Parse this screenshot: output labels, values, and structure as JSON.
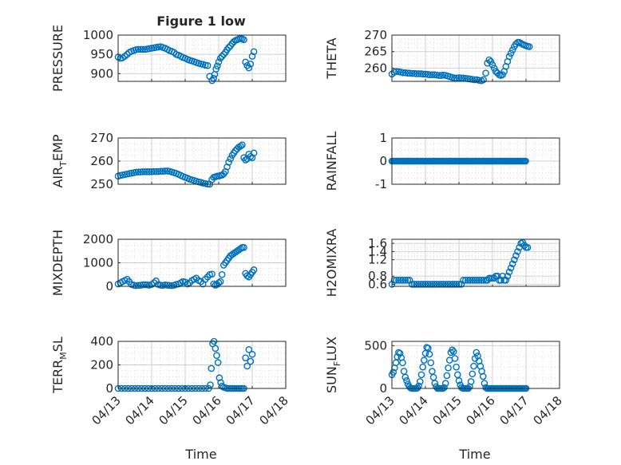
{
  "figure": {
    "title": "Figure 1 low",
    "xlabel": "Time",
    "x_ticks": [
      "04/13",
      "04/14",
      "04/15",
      "04/16",
      "04/17",
      "04/18"
    ],
    "x_range": [
      13,
      18
    ],
    "marker": "circle",
    "marker_color": "#0072bd",
    "grid": "major and minor dotted"
  },
  "chart_data": [
    {
      "id": "pressure",
      "type": "scatter",
      "ylabel": "PRESSURE",
      "ylim": [
        880,
        1000
      ],
      "yticks": [
        900,
        950,
        1000
      ],
      "x": [
        13.0,
        13.07,
        13.13,
        13.2,
        13.27,
        13.33,
        13.4,
        13.47,
        13.53,
        13.6,
        13.67,
        13.73,
        13.8,
        13.87,
        13.93,
        14.0,
        14.07,
        14.13,
        14.2,
        14.27,
        14.33,
        14.4,
        14.47,
        14.53,
        14.6,
        14.67,
        14.73,
        14.8,
        14.87,
        14.93,
        15.0,
        15.07,
        15.13,
        15.2,
        15.27,
        15.33,
        15.4,
        15.47,
        15.53,
        15.6,
        15.67,
        15.73,
        15.8,
        15.85,
        15.88,
        15.92,
        15.96,
        16.0,
        16.05,
        16.1,
        16.15,
        16.2,
        16.25,
        16.3,
        16.35,
        16.4,
        16.45,
        16.5,
        16.55,
        16.6,
        16.65,
        16.7,
        16.75,
        16.8,
        16.85,
        16.9,
        16.95,
        17.0,
        17.05
      ],
      "y": [
        943,
        940,
        941,
        945,
        950,
        955,
        958,
        960,
        962,
        963,
        963,
        963,
        963,
        964,
        965,
        966,
        967,
        968,
        969,
        970,
        968,
        966,
        963,
        960,
        958,
        955,
        950,
        948,
        945,
        942,
        940,
        937,
        935,
        933,
        931,
        929,
        927,
        925,
        924,
        922,
        921,
        893,
        882,
        888,
        898,
        912,
        920,
        930,
        940,
        945,
        950,
        955,
        962,
        968,
        972,
        978,
        983,
        986,
        988,
        990,
        991,
        990,
        988,
        930,
        921,
        915,
        925,
        945,
        957
      ]
    },
    {
      "id": "theta",
      "type": "scatter",
      "ylabel": "THETA",
      "ylim": [
        256,
        270
      ],
      "yticks": [
        260,
        265,
        270
      ],
      "x": [
        13.0,
        13.07,
        13.13,
        13.2,
        13.27,
        13.33,
        13.4,
        13.47,
        13.53,
        13.6,
        13.67,
        13.73,
        13.8,
        13.87,
        13.93,
        14.0,
        14.07,
        14.13,
        14.2,
        14.27,
        14.33,
        14.4,
        14.47,
        14.53,
        14.6,
        14.67,
        14.73,
        14.8,
        14.87,
        14.93,
        15.0,
        15.07,
        15.13,
        15.2,
        15.27,
        15.33,
        15.4,
        15.47,
        15.53,
        15.6,
        15.67,
        15.73,
        15.8,
        15.85,
        15.9,
        15.95,
        16.0,
        16.05,
        16.1,
        16.15,
        16.2,
        16.25,
        16.3,
        16.35,
        16.4,
        16.45,
        16.5,
        16.55,
        16.6,
        16.65,
        16.7,
        16.75,
        16.8,
        16.85,
        16.9,
        16.95,
        17.0,
        17.05,
        17.1
      ],
      "y": [
        258.2,
        258.8,
        259.0,
        258.9,
        258.8,
        258.6,
        258.6,
        258.5,
        258.5,
        258.4,
        258.4,
        258.3,
        258.3,
        258.3,
        258.2,
        258.2,
        258.1,
        258.0,
        258.0,
        258.0,
        257.9,
        257.8,
        257.8,
        257.9,
        257.8,
        257.6,
        257.4,
        257.2,
        257.0,
        257.0,
        257.1,
        257.0,
        257.0,
        256.9,
        256.8,
        256.7,
        256.6,
        256.5,
        256.5,
        256.3,
        256.2,
        256.5,
        258.5,
        261.5,
        262.5,
        262.0,
        261.0,
        260.0,
        259.0,
        258.5,
        258.0,
        257.8,
        258.0,
        259.0,
        260.5,
        262.0,
        263.5,
        264.5,
        265.5,
        266.5,
        267.3,
        267.8,
        267.8,
        267.5,
        267.2,
        267.0,
        266.8,
        266.6,
        266.5
      ]
    },
    {
      "id": "air_temp",
      "type": "scatter",
      "ylabel": "AIR_TEMP",
      "ylabel_display": [
        "AIR",
        "T",
        "EMP"
      ],
      "ylim": [
        250,
        270
      ],
      "yticks": [
        250,
        260,
        270
      ],
      "x": [
        13.0,
        13.07,
        13.13,
        13.2,
        13.27,
        13.33,
        13.4,
        13.47,
        13.53,
        13.6,
        13.67,
        13.73,
        13.8,
        13.87,
        13.93,
        14.0,
        14.07,
        14.13,
        14.2,
        14.27,
        14.33,
        14.4,
        14.47,
        14.53,
        14.6,
        14.67,
        14.73,
        14.8,
        14.87,
        14.93,
        15.0,
        15.07,
        15.13,
        15.2,
        15.27,
        15.33,
        15.4,
        15.47,
        15.53,
        15.6,
        15.67,
        15.73,
        15.8,
        15.85,
        15.9,
        15.95,
        16.0,
        16.05,
        16.1,
        16.15,
        16.2,
        16.25,
        16.3,
        16.35,
        16.4,
        16.45,
        16.5,
        16.55,
        16.6,
        16.65,
        16.7,
        16.75,
        16.8,
        16.85,
        16.9,
        16.95,
        17.0,
        17.05
      ],
      "y": [
        253.5,
        253.8,
        254.0,
        254.2,
        254.4,
        254.6,
        254.8,
        255.0,
        255.2,
        255.3,
        255.3,
        255.4,
        255.4,
        255.4,
        255.4,
        255.4,
        255.5,
        255.5,
        255.5,
        255.6,
        255.6,
        255.7,
        255.7,
        255.6,
        255.3,
        255.0,
        254.7,
        254.3,
        253.8,
        253.4,
        253.0,
        252.6,
        252.2,
        251.9,
        251.6,
        251.3,
        251.0,
        250.8,
        250.5,
        250.3,
        250.1,
        250.0,
        252.0,
        253.0,
        253.2,
        253.5,
        253.5,
        253.8,
        254.0,
        254.5,
        255.5,
        257.5,
        259.5,
        261.0,
        262.5,
        263.5,
        264.5,
        265.3,
        266.0,
        266.5,
        267.0,
        261.5,
        260.5,
        261.0,
        263.0,
        262.0,
        261.5,
        263.5
      ]
    },
    {
      "id": "rainfall",
      "type": "scatter",
      "ylabel": "RAINFALL",
      "ylim": [
        -1,
        1
      ],
      "yticks": [
        -1,
        0,
        1
      ],
      "x_start": 13.0,
      "x_end": 17.0,
      "constant_value": 0
    },
    {
      "id": "mixdepth",
      "type": "scatter",
      "ylabel": "MIXDEPTH",
      "ylim": [
        0,
        2000
      ],
      "yticks": [
        0,
        1000,
        2000
      ],
      "x": [
        13.0,
        13.07,
        13.13,
        13.2,
        13.27,
        13.33,
        13.4,
        13.47,
        13.53,
        13.6,
        13.67,
        13.73,
        13.8,
        13.87,
        13.93,
        14.0,
        14.07,
        14.13,
        14.2,
        14.27,
        14.33,
        14.4,
        14.47,
        14.53,
        14.6,
        14.67,
        14.73,
        14.8,
        14.87,
        14.93,
        15.0,
        15.07,
        15.13,
        15.2,
        15.27,
        15.33,
        15.4,
        15.47,
        15.53,
        15.6,
        15.67,
        15.73,
        15.8,
        15.85,
        15.9,
        15.95,
        16.0,
        16.05,
        16.1,
        16.15,
        16.2,
        16.25,
        16.3,
        16.35,
        16.4,
        16.45,
        16.5,
        16.55,
        16.6,
        16.65,
        16.7,
        16.75,
        16.8,
        16.85,
        16.9,
        16.95,
        17.0,
        17.05
      ],
      "y": [
        100,
        150,
        200,
        250,
        300,
        200,
        80,
        50,
        30,
        40,
        50,
        60,
        70,
        60,
        50,
        80,
        150,
        230,
        80,
        50,
        40,
        60,
        50,
        40,
        30,
        50,
        80,
        100,
        150,
        200,
        180,
        100,
        150,
        250,
        300,
        350,
        250,
        200,
        100,
        300,
        400,
        500,
        520,
        100,
        50,
        80,
        150,
        200,
        500,
        900,
        1000,
        1100,
        1200,
        1300,
        1350,
        1400,
        1450,
        1500,
        1550,
        1600,
        1650,
        1650,
        550,
        450,
        400,
        500,
        600,
        700
      ]
    },
    {
      "id": "h2omixra",
      "type": "scatter",
      "ylabel": "H2OMIXRA",
      "ylim": [
        0.55,
        1.7
      ],
      "yticks": [
        0.6,
        0.8,
        1.2,
        1.4,
        1.6
      ],
      "x": [
        13.0,
        13.07,
        13.13,
        13.2,
        13.27,
        13.33,
        13.4,
        13.47,
        13.53,
        13.6,
        13.67,
        13.73,
        13.8,
        13.87,
        13.93,
        14.0,
        14.07,
        14.13,
        14.2,
        14.27,
        14.33,
        14.4,
        14.47,
        14.53,
        14.6,
        14.67,
        14.73,
        14.8,
        14.87,
        14.93,
        15.0,
        15.07,
        15.13,
        15.2,
        15.27,
        15.33,
        15.4,
        15.47,
        15.53,
        15.6,
        15.67,
        15.73,
        15.8,
        15.85,
        15.9,
        15.95,
        16.0,
        16.05,
        16.1,
        16.15,
        16.2,
        16.25,
        16.3,
        16.35,
        16.4,
        16.45,
        16.5,
        16.55,
        16.6,
        16.65,
        16.7,
        16.75,
        16.8,
        16.85,
        16.9,
        16.95,
        17.0,
        17.05
      ],
      "y": [
        0.6,
        0.7,
        0.7,
        0.7,
        0.7,
        0.7,
        0.7,
        0.7,
        0.7,
        0.6,
        0.6,
        0.6,
        0.6,
        0.6,
        0.6,
        0.6,
        0.6,
        0.6,
        0.6,
        0.6,
        0.6,
        0.6,
        0.6,
        0.6,
        0.6,
        0.6,
        0.6,
        0.6,
        0.6,
        0.6,
        0.6,
        0.6,
        0.7,
        0.7,
        0.7,
        0.7,
        0.7,
        0.7,
        0.7,
        0.7,
        0.7,
        0.7,
        0.7,
        0.7,
        0.75,
        0.75,
        0.75,
        0.75,
        0.8,
        0.8,
        0.7,
        0.7,
        0.8,
        0.7,
        0.7,
        0.8,
        0.9,
        1.0,
        1.1,
        1.2,
        1.3,
        1.4,
        1.5,
        1.6,
        1.62,
        1.55,
        1.5,
        1.5
      ]
    },
    {
      "id": "terr_msl",
      "type": "scatter",
      "ylabel": "TERR_MSL",
      "ylabel_display": [
        "TERR",
        "M",
        "SL"
      ],
      "ylim": [
        0,
        400
      ],
      "yticks": [
        0,
        200,
        400
      ],
      "x": [
        13.0,
        13.1,
        13.2,
        13.3,
        13.4,
        13.5,
        13.6,
        13.7,
        13.8,
        13.9,
        14.0,
        14.1,
        14.2,
        14.3,
        14.4,
        14.5,
        14.6,
        14.7,
        14.8,
        14.9,
        15.0,
        15.1,
        15.2,
        15.3,
        15.4,
        15.5,
        15.6,
        15.7,
        15.75,
        15.78,
        15.82,
        15.86,
        15.9,
        15.94,
        15.98,
        16.02,
        16.06,
        16.1,
        16.15,
        16.2,
        16.25,
        16.3,
        16.35,
        16.4,
        16.45,
        16.5,
        16.55,
        16.6,
        16.65,
        16.7,
        16.75,
        16.8,
        16.85,
        16.9,
        16.95,
        17.0
      ],
      "y": [
        0,
        0,
        0,
        0,
        0,
        0,
        0,
        0,
        0,
        0,
        0,
        0,
        0,
        0,
        0,
        0,
        0,
        0,
        0,
        0,
        0,
        0,
        0,
        0,
        0,
        0,
        0,
        0,
        30,
        170,
        380,
        400,
        340,
        280,
        220,
        90,
        50,
        20,
        10,
        5,
        0,
        0,
        0,
        0,
        0,
        0,
        0,
        0,
        0,
        0,
        0,
        260,
        190,
        330,
        230,
        290
      ]
    },
    {
      "id": "sun_flux",
      "type": "scatter",
      "ylabel": "SUN_FLUX",
      "ylabel_display": [
        "SUN",
        "F",
        "LUX"
      ],
      "ylim": [
        0,
        550
      ],
      "yticks": [
        0,
        500
      ],
      "x": [
        13.0,
        13.04,
        13.08,
        13.12,
        13.16,
        13.2,
        13.24,
        13.28,
        13.32,
        13.36,
        13.4,
        13.44,
        13.48,
        13.52,
        13.56,
        13.6,
        13.64,
        13.68,
        13.72,
        13.76,
        13.8,
        13.84,
        13.88,
        13.92,
        13.96,
        14.0,
        14.04,
        14.08,
        14.12,
        14.16,
        14.2,
        14.24,
        14.28,
        14.32,
        14.36,
        14.4,
        14.44,
        14.48,
        14.52,
        14.56,
        14.6,
        14.64,
        14.68,
        14.72,
        14.76,
        14.8,
        14.84,
        14.88,
        14.92,
        14.96,
        15.0,
        15.04,
        15.08,
        15.12,
        15.16,
        15.2,
        15.24,
        15.28,
        15.32,
        15.36,
        15.4,
        15.44,
        15.48,
        15.52,
        15.56,
        15.6,
        15.64,
        15.68,
        15.72,
        15.76,
        15.8,
        15.84,
        15.88,
        15.92,
        15.96,
        16.0,
        16.04,
        16.08,
        16.12,
        16.16,
        16.2,
        16.24,
        16.28,
        16.32,
        16.36,
        16.4,
        16.44,
        16.48,
        16.52,
        16.56,
        16.6,
        16.64,
        16.68,
        16.72,
        16.76,
        16.8,
        16.84,
        16.88,
        16.92,
        16.96,
        17.0
      ],
      "y": [
        160,
        190,
        240,
        300,
        370,
        420,
        410,
        360,
        300,
        200,
        130,
        90,
        50,
        20,
        5,
        0,
        0,
        0,
        0,
        5,
        30,
        80,
        160,
        250,
        330,
        410,
        480,
        470,
        400,
        300,
        200,
        130,
        60,
        20,
        0,
        0,
        0,
        0,
        0,
        10,
        60,
        150,
        240,
        330,
        420,
        450,
        430,
        350,
        250,
        160,
        90,
        40,
        10,
        0,
        0,
        0,
        0,
        0,
        20,
        80,
        170,
        260,
        350,
        420,
        380,
        320,
        260,
        200,
        140,
        60,
        10,
        0,
        0,
        0,
        0,
        0,
        0,
        0,
        0,
        0,
        0,
        0,
        0,
        0,
        0,
        0,
        0,
        0,
        0,
        0,
        0,
        0,
        0,
        0,
        0,
        0,
        0,
        0,
        0,
        0,
        0
      ]
    }
  ]
}
